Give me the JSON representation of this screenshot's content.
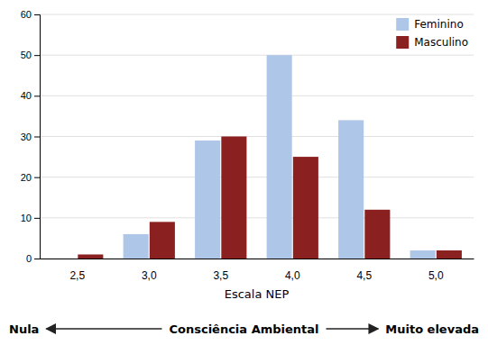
{
  "chart_data": {
    "type": "bar",
    "categories": [
      "2,5",
      "3,0",
      "3,5",
      "4,0",
      "4,5",
      "5,0"
    ],
    "series": [
      {
        "name": "Feminino",
        "color": "#aec6e8",
        "values": [
          0,
          6,
          29,
          50,
          34,
          2
        ]
      },
      {
        "name": "Masculino",
        "color": "#8b2020",
        "values": [
          1,
          9,
          30,
          25,
          12,
          2
        ]
      }
    ],
    "xlabel": "Escala NEP",
    "ylim": [
      0,
      60
    ],
    "yticks": [
      0,
      10,
      20,
      30,
      40,
      50,
      60
    ],
    "grid": true,
    "legend": "upper right",
    "annotations": [
      "Nula",
      "Consciência Ambiental",
      "Muito elevada"
    ]
  }
}
